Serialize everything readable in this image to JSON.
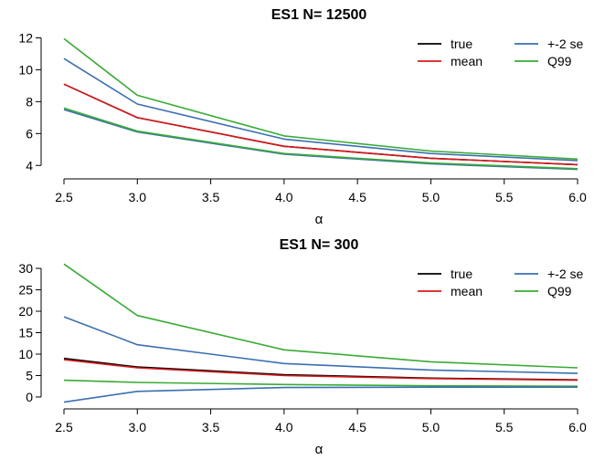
{
  "chart_data": [
    {
      "type": "line",
      "title": "ES1 N= 12500",
      "xlabel": "α",
      "ylabel": "",
      "xlim": [
        2.5,
        6.0
      ],
      "ylim": [
        3.5,
        12.2
      ],
      "xticks": [
        2.5,
        3.0,
        3.5,
        4.0,
        4.5,
        5.0,
        5.5,
        6.0
      ],
      "xtick_labels": [
        "2.5",
        "3.0",
        "3.5",
        "4.0",
        "4.5",
        "5.0",
        "5.5",
        "6.0"
      ],
      "yticks": [
        4,
        6,
        8,
        10,
        12
      ],
      "ytick_labels": [
        "4",
        "6",
        "8",
        "10",
        "12"
      ],
      "grid": false,
      "legend": {
        "placement": "top-right",
        "columns": 2,
        "entries": [
          {
            "label": "true",
            "color": "#000000"
          },
          {
            "label": "mean",
            "color": "#d7191c"
          },
          {
            "label": "+-2 se",
            "color": "#3a6fb0"
          },
          {
            "label": "Q99",
            "color": "#3aaa35"
          }
        ]
      },
      "x": [
        2.5,
        3.0,
        4.0,
        5.0,
        6.0
      ],
      "series": [
        {
          "name": "Q99",
          "color": "#3aaa35",
          "values": [
            11.95,
            8.4,
            5.85,
            4.9,
            4.4
          ]
        },
        {
          "name": "+-2 se",
          "color": "#3a6fb0",
          "values": [
            10.7,
            7.85,
            5.65,
            4.75,
            4.3
          ]
        },
        {
          "name": "+-2 se",
          "color": "#3a6fb0",
          "values": [
            7.5,
            6.1,
            4.7,
            4.1,
            3.75
          ]
        },
        {
          "name": "Q99",
          "color": "#3aaa35",
          "values": [
            7.6,
            6.15,
            4.75,
            4.15,
            3.8
          ]
        },
        {
          "name": "true",
          "color": "#000000",
          "values": [
            9.1,
            7.0,
            5.2,
            4.45,
            4.05
          ]
        },
        {
          "name": "mean",
          "color": "#d7191c",
          "values": [
            9.1,
            7.0,
            5.2,
            4.45,
            4.05
          ]
        }
      ]
    },
    {
      "type": "line",
      "title": "ES1 N= 300",
      "xlabel": "α",
      "ylabel": "",
      "xlim": [
        2.5,
        6.0
      ],
      "ylim": [
        -1.5,
        31.5
      ],
      "xticks": [
        2.5,
        3.0,
        3.5,
        4.0,
        4.5,
        5.0,
        5.5,
        6.0
      ],
      "xtick_labels": [
        "2.5",
        "3.0",
        "3.5",
        "4.0",
        "4.5",
        "5.0",
        "5.5",
        "6.0"
      ],
      "yticks": [
        0,
        5,
        10,
        15,
        20,
        25,
        30
      ],
      "ytick_labels": [
        "0",
        "5",
        "10",
        "15",
        "20",
        "25",
        "30"
      ],
      "grid": false,
      "legend": {
        "placement": "top-right",
        "columns": 2,
        "entries": [
          {
            "label": "true",
            "color": "#000000"
          },
          {
            "label": "mean",
            "color": "#d7191c"
          },
          {
            "label": "+-2 se",
            "color": "#3a6fb0"
          },
          {
            "label": "Q99",
            "color": "#3aaa35"
          }
        ]
      },
      "x": [
        2.5,
        3.0,
        4.0,
        5.0,
        6.0
      ],
      "series": [
        {
          "name": "Q99",
          "color": "#3aaa35",
          "values": [
            31.0,
            19.0,
            11.0,
            8.2,
            6.8
          ]
        },
        {
          "name": "+-2 se",
          "color": "#3a6fb0",
          "values": [
            18.7,
            12.2,
            7.8,
            6.3,
            5.5
          ]
        },
        {
          "name": "Q99",
          "color": "#3aaa35",
          "values": [
            3.9,
            3.4,
            2.9,
            2.6,
            2.5
          ]
        },
        {
          "name": "+-2 se",
          "color": "#3a6fb0",
          "values": [
            -1.2,
            1.3,
            2.2,
            2.3,
            2.3
          ]
        },
        {
          "name": "true",
          "color": "#000000",
          "values": [
            9.0,
            7.0,
            5.2,
            4.4,
            4.0
          ]
        },
        {
          "name": "mean",
          "color": "#d7191c",
          "values": [
            8.7,
            6.8,
            5.0,
            4.3,
            3.9
          ]
        }
      ]
    }
  ]
}
